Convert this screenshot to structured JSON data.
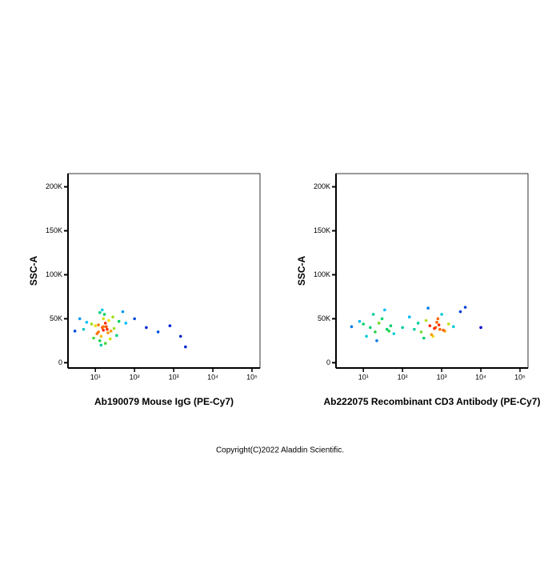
{
  "chart_data": [
    {
      "type": "scatter",
      "x_label": "Ab190079 Mouse IgG (PE-Cy7)",
      "y_label": "SSC-A",
      "xscale": "log",
      "xlim": [
        2,
        160000
      ],
      "ylim": [
        -6000,
        215000
      ],
      "xticks": [
        {
          "value": 10,
          "label": "10¹"
        },
        {
          "value": 100,
          "label": "10²"
        },
        {
          "value": 1000,
          "label": "10³"
        },
        {
          "value": 10000,
          "label": "10⁴"
        },
        {
          "value": 100000,
          "label": "10⁵"
        }
      ],
      "yticks": [
        0,
        {
          "value": 50000,
          "label": "50K"
        },
        {
          "value": 100000,
          "label": "100K"
        },
        {
          "value": 150000,
          "label": "150K"
        },
        {
          "value": 200000,
          "label": "200K"
        }
      ],
      "x": [
        15,
        12,
        18,
        20,
        10,
        14,
        16,
        25,
        8,
        22,
        13,
        17,
        11,
        19,
        30,
        6,
        40,
        9,
        28,
        15,
        14,
        16,
        12,
        21,
        5,
        35,
        60,
        100,
        200,
        400,
        800,
        1500,
        2000,
        4,
        3,
        50,
        18,
        13,
        24,
        16
      ],
      "y": [
        40000,
        35000,
        45000,
        38000,
        42000,
        30000,
        50000,
        36000,
        44000,
        48000,
        25000,
        55000,
        33000,
        41000,
        39000,
        46000,
        47000,
        28000,
        52000,
        60000,
        20000,
        37000,
        43000,
        34000,
        38000,
        31000,
        45000,
        50000,
        40000,
        35000,
        42000,
        30000,
        18000,
        50000,
        36000,
        58000,
        22000,
        57000,
        27000,
        41000
      ]
    },
    {
      "type": "scatter",
      "x_label": "Ab222075 Recombinant CD3 Antibody (PE-Cy7)",
      "y_label": "SSC-A",
      "xscale": "log",
      "xlim": [
        2,
        160000
      ],
      "ylim": [
        -6000,
        215000
      ],
      "xticks": [
        {
          "value": 10,
          "label": "10¹"
        },
        {
          "value": 100,
          "label": "10²"
        },
        {
          "value": 1000,
          "label": "10³"
        },
        {
          "value": 10000,
          "label": "10⁴"
        },
        {
          "value": 100000,
          "label": "10⁵"
        }
      ],
      "yticks": [
        0,
        {
          "value": 50000,
          "label": "50K"
        },
        {
          "value": 100000,
          "label": "100K"
        },
        {
          "value": 150000,
          "label": "150K"
        },
        {
          "value": 200000,
          "label": "200K"
        }
      ],
      "x": [
        15,
        20,
        25,
        30,
        12,
        40,
        18,
        50,
        22,
        35,
        10,
        60,
        8,
        45,
        100,
        150,
        200,
        250,
        300,
        400,
        500,
        600,
        700,
        800,
        900,
        1000,
        1200,
        1500,
        2000,
        3000,
        650,
        750,
        550,
        850,
        450,
        350,
        1100,
        4000,
        10000,
        5
      ],
      "y": [
        40000,
        35000,
        45000,
        50000,
        30000,
        38000,
        55000,
        42000,
        25000,
        60000,
        44000,
        33000,
        47000,
        36000,
        40000,
        52000,
        38000,
        45000,
        35000,
        48000,
        42000,
        30000,
        40000,
        50000,
        38000,
        55000,
        36000,
        44000,
        41000,
        58000,
        39000,
        46000,
        32000,
        43000,
        62000,
        28000,
        37000,
        63000,
        40000,
        41000
      ]
    }
  ],
  "copyright": "Copyright(C)2022 Aladdin Scientific."
}
